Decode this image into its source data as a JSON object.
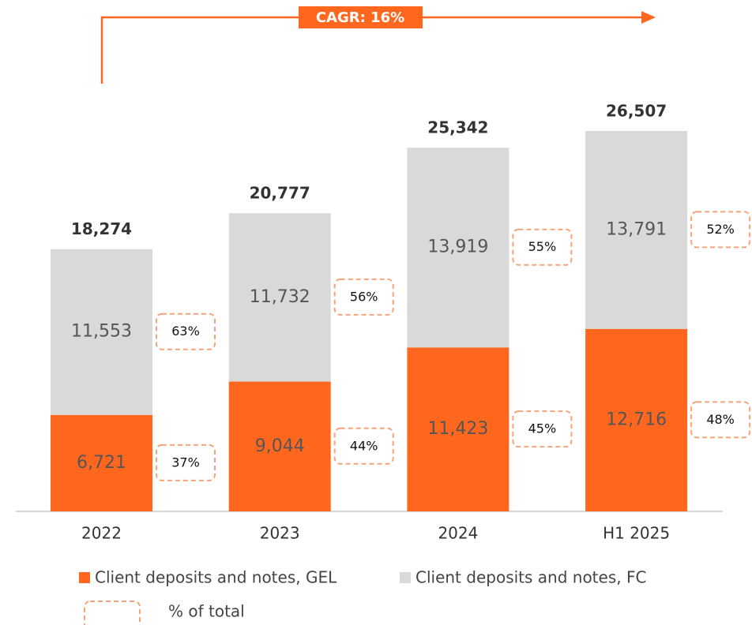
{
  "chart_data": {
    "type": "stacked_bar",
    "annotation": "CAGR: 16%",
    "categories": [
      "2022",
      "2023",
      "2024",
      "H1 2025"
    ],
    "series": [
      {
        "name": "Client deposits and notes, GEL",
        "color": "#ff671f",
        "values": [
          6721,
          9044,
          11423,
          12716
        ],
        "value_labels": [
          "6,721",
          "9,044",
          "11,423",
          "12,716"
        ],
        "shares": [
          37,
          44,
          45,
          48
        ],
        "share_labels": [
          "37%",
          "44%",
          "45%",
          "48%"
        ]
      },
      {
        "name": "Client deposits and notes, FC",
        "color": "#d9d9d9",
        "values": [
          11553,
          11732,
          13919,
          13791
        ],
        "value_labels": [
          "11,553",
          "11,732",
          "13,919",
          "13,791"
        ],
        "shares": [
          63,
          56,
          55,
          52
        ],
        "share_labels": [
          "63%",
          "56%",
          "55%",
          "52%"
        ]
      }
    ],
    "totals": [
      18274,
      20777,
      25342,
      26507
    ],
    "total_labels": [
      "18,274",
      "20,777",
      "25,342",
      "26,507"
    ],
    "share_legend": "% of total",
    "share_box_color": "#f4a47a"
  }
}
